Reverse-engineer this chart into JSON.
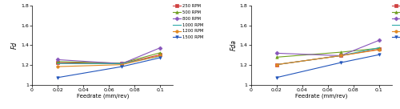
{
  "feedrates": [
    0.02,
    0.07,
    0.1
  ],
  "left_ylabel": "Fd",
  "right_ylabel": "Fda",
  "xlabel": "Feedrate (mm/rev)",
  "left_series": {
    "250 RPM": {
      "values": [
        1.225,
        1.215,
        1.305
      ],
      "color": "#d04040",
      "marker": "s"
    },
    "500 RPM": {
      "values": [
        1.235,
        1.22,
        1.325
      ],
      "color": "#70a020",
      "marker": "^"
    },
    "800 RPM": {
      "values": [
        1.255,
        1.215,
        1.375
      ],
      "color": "#8855bb",
      "marker": "D"
    },
    "1000 RPM": {
      "values": [
        1.215,
        1.215,
        1.29
      ],
      "color": "#30aaaa",
      "marker": "none"
    },
    "1200 RPM": {
      "values": [
        1.185,
        1.205,
        1.295
      ],
      "color": "#e08820",
      "marker": "o"
    },
    "1500 RPM": {
      "values": [
        1.075,
        1.185,
        1.275
      ],
      "color": "#2255bb",
      "marker": "v"
    }
  },
  "right_series": {
    "250 RPM": {
      "values": [
        1.205,
        1.295,
        1.36
      ],
      "color": "#d04040",
      "marker": "s"
    },
    "500 RPM": {
      "values": [
        1.28,
        1.33,
        1.37
      ],
      "color": "#70a020",
      "marker": "^"
    },
    "800 RPM": {
      "values": [
        1.32,
        1.295,
        1.45
      ],
      "color": "#8855bb",
      "marker": "D"
    },
    "1000 RPM": {
      "values": [
        1.205,
        1.295,
        1.375
      ],
      "color": "#30aaaa",
      "marker": "none"
    },
    "1200 RPM": {
      "values": [
        1.205,
        1.295,
        1.355
      ],
      "color": "#e08820",
      "marker": "o"
    },
    "1500 RPM": {
      "values": [
        1.075,
        1.225,
        1.305
      ],
      "color": "#2255bb",
      "marker": "v"
    }
  },
  "ylim": [
    1.0,
    1.8
  ],
  "yticks": [
    1.0,
    1.2,
    1.4,
    1.6,
    1.8
  ],
  "xlim": [
    0.0,
    0.11
  ],
  "xticks": [
    0.0,
    0.02,
    0.04,
    0.06,
    0.08,
    0.1
  ],
  "xtick_labels": [
    "0",
    "0.02",
    "0.04",
    "0.06",
    "0.08",
    "0.1"
  ],
  "ytick_labels": [
    "1",
    "1.2",
    "1.4",
    "1.6",
    "1.8"
  ]
}
